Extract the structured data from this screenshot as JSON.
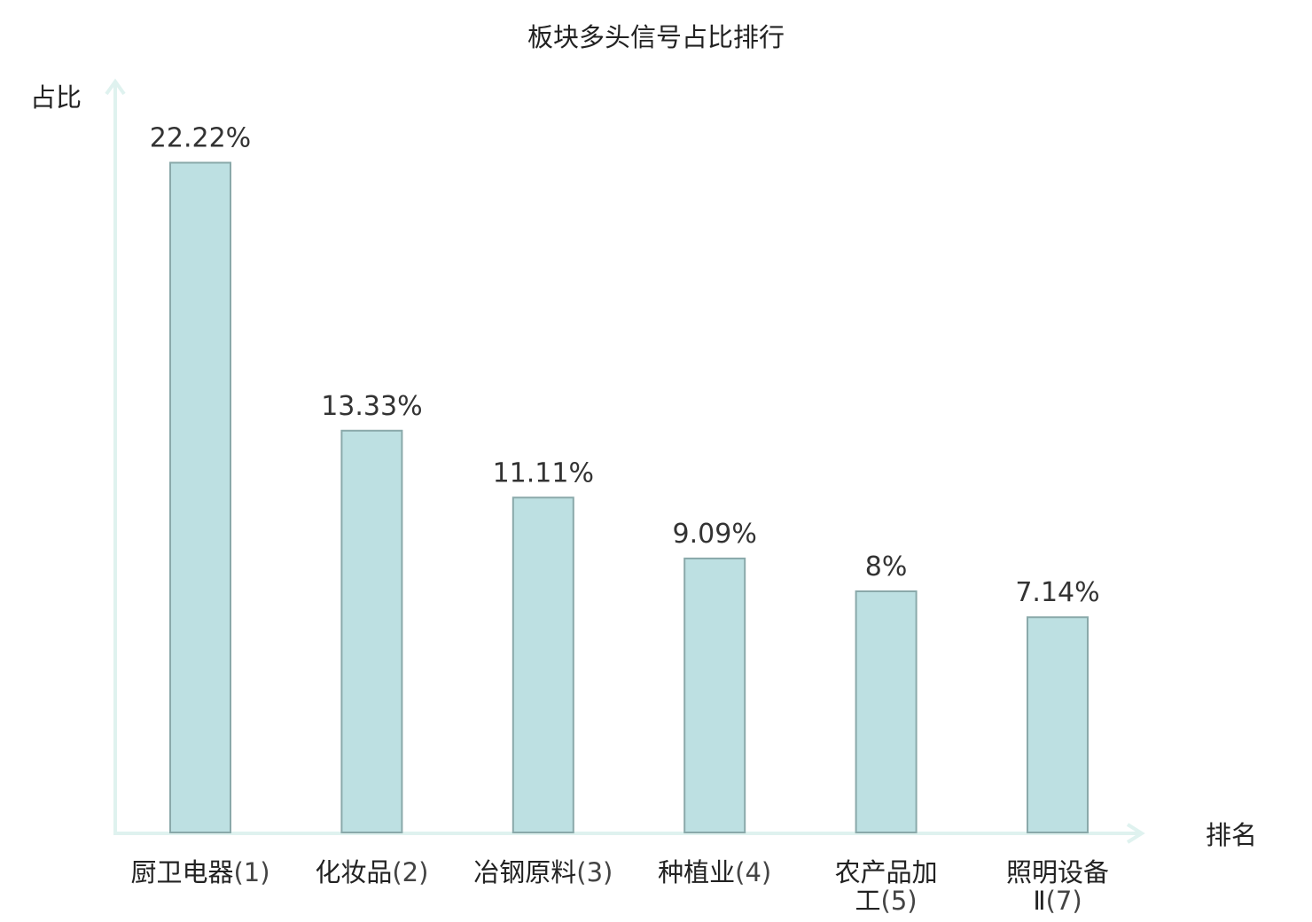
{
  "chart_data": {
    "type": "bar",
    "title": "板块多头信号占比排行",
    "xlabel": "排名",
    "ylabel": "占比",
    "unit": "%",
    "ylim": [
      0,
      25
    ],
    "grid": false,
    "categories": [
      {
        "name_lines": [
          "厨卫电器"
        ],
        "rank": "(1)",
        "highlight": false
      },
      {
        "name_lines": [
          "化妆品"
        ],
        "rank": "(2)",
        "highlight": false
      },
      {
        "name_lines": [
          "冶钢原料"
        ],
        "rank": "(3)",
        "highlight": false
      },
      {
        "name_lines": [
          "种植业"
        ],
        "rank": "(4)",
        "highlight": false
      },
      {
        "name_lines": [
          "农产品加",
          "工"
        ],
        "rank": "(5)",
        "highlight": false
      },
      {
        "name_lines": [
          "照明设备",
          "Ⅱ"
        ],
        "rank": "(7)",
        "highlight": true
      }
    ],
    "values": [
      22.22,
      13.33,
      11.11,
      9.09,
      8,
      7.14
    ],
    "value_labels": [
      "22.22%",
      "13.33%",
      "11.11%",
      "9.09%",
      "8%",
      "7.14%"
    ]
  },
  "colors": {
    "bar_fill": "#bde0e2",
    "bar_stroke": "#8aa9aa",
    "axis": "#dff2ef",
    "text": "#222222",
    "highlight": "#e01010"
  }
}
